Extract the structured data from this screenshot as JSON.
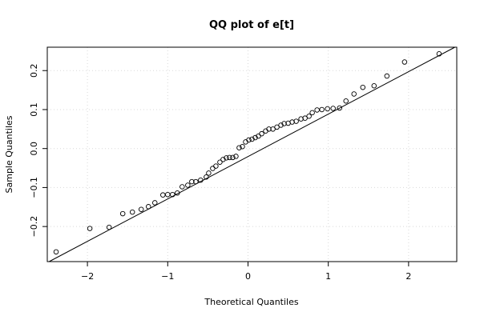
{
  "chart_data": {
    "type": "scatter",
    "title": "QQ plot of e[t]",
    "xlabel": "Theoretical Quantiles",
    "ylabel": "Sample Quantiles",
    "xlim": [
      -2.5,
      2.6
    ],
    "ylim": [
      -0.29,
      0.26
    ],
    "x_ticks": [
      -2,
      -1,
      0,
      1,
      2
    ],
    "x_tick_labels": [
      "−2",
      "−1",
      "0",
      "1",
      "2"
    ],
    "y_ticks": [
      -0.2,
      -0.1,
      0.0,
      0.1,
      0.2
    ],
    "y_tick_labels": [
      "−0.2",
      "−0.1",
      "0.0",
      "0.1",
      "0.2"
    ],
    "grid": true,
    "reference_line": {
      "x": [
        -2.5,
        2.6
      ],
      "y": [
        -0.2925,
        0.2625
      ]
    },
    "points": {
      "x": [
        -2.39,
        -1.97,
        -1.73,
        -1.56,
        -1.44,
        -1.33,
        -1.24,
        -1.16,
        -1.06,
        -1.0,
        -0.94,
        -0.88,
        -0.82,
        -0.75,
        -0.7,
        -0.65,
        -0.59,
        -0.52,
        -0.49,
        -0.44,
        -0.4,
        -0.35,
        -0.31,
        -0.27,
        -0.23,
        -0.19,
        -0.15,
        -0.11,
        -0.07,
        -0.03,
        0.01,
        0.05,
        0.09,
        0.13,
        0.17,
        0.22,
        0.26,
        0.31,
        0.36,
        0.41,
        0.45,
        0.5,
        0.55,
        0.6,
        0.66,
        0.71,
        0.76,
        0.8,
        0.86,
        0.92,
        0.99,
        1.06,
        1.14,
        1.22,
        1.32,
        1.43,
        1.57,
        1.73,
        1.95,
        2.38
      ],
      "y": [
        -0.265,
        -0.205,
        -0.202,
        -0.167,
        -0.163,
        -0.156,
        -0.149,
        -0.139,
        -0.119,
        -0.118,
        -0.118,
        -0.114,
        -0.098,
        -0.094,
        -0.085,
        -0.085,
        -0.081,
        -0.073,
        -0.063,
        -0.051,
        -0.045,
        -0.035,
        -0.028,
        -0.024,
        -0.023,
        -0.023,
        -0.02,
        0.002,
        0.005,
        0.017,
        0.022,
        0.024,
        0.028,
        0.032,
        0.038,
        0.045,
        0.05,
        0.05,
        0.055,
        0.06,
        0.064,
        0.065,
        0.068,
        0.07,
        0.076,
        0.078,
        0.083,
        0.092,
        0.099,
        0.1,
        0.102,
        0.103,
        0.104,
        0.122,
        0.14,
        0.157,
        0.161,
        0.186,
        0.222,
        0.243
      ]
    }
  }
}
